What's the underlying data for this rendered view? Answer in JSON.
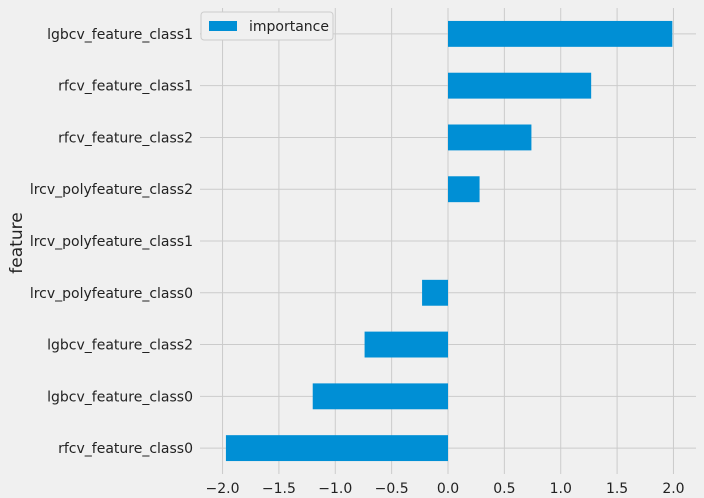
{
  "chart_data": {
    "type": "bar",
    "orientation": "horizontal",
    "categories": [
      "rfcv_feature_class0",
      "lgbcv_feature_class0",
      "lgbcv_feature_class2",
      "lrcv_polyfeature_class0",
      "lrcv_polyfeature_class1",
      "lrcv_polyfeature_class2",
      "rfcv_feature_class2",
      "rfcv_feature_class1",
      "lgbcv_feature_class1"
    ],
    "series": [
      {
        "name": "importance",
        "color": "#008fd5",
        "values": [
          -1.97,
          -1.2,
          -0.74,
          -0.23,
          0.0,
          0.28,
          0.74,
          1.27,
          1.99
        ]
      }
    ],
    "ylabel": "feature",
    "xlim": [
      -2.2,
      2.2
    ],
    "xticks": [
      -2.0,
      -1.5,
      -1.0,
      -0.5,
      0.0,
      0.5,
      1.0,
      1.5,
      2.0
    ],
    "xtick_labels": [
      "−2.0",
      "−1.5",
      "−1.0",
      "−0.5",
      "0.0",
      "0.5",
      "1.0",
      "1.5",
      "2.0"
    ],
    "grid": true,
    "legend": "upper-left",
    "colors": {
      "background": "#f0f0f0",
      "grid": "#cbcbcb",
      "bar": "#008fd5"
    }
  }
}
